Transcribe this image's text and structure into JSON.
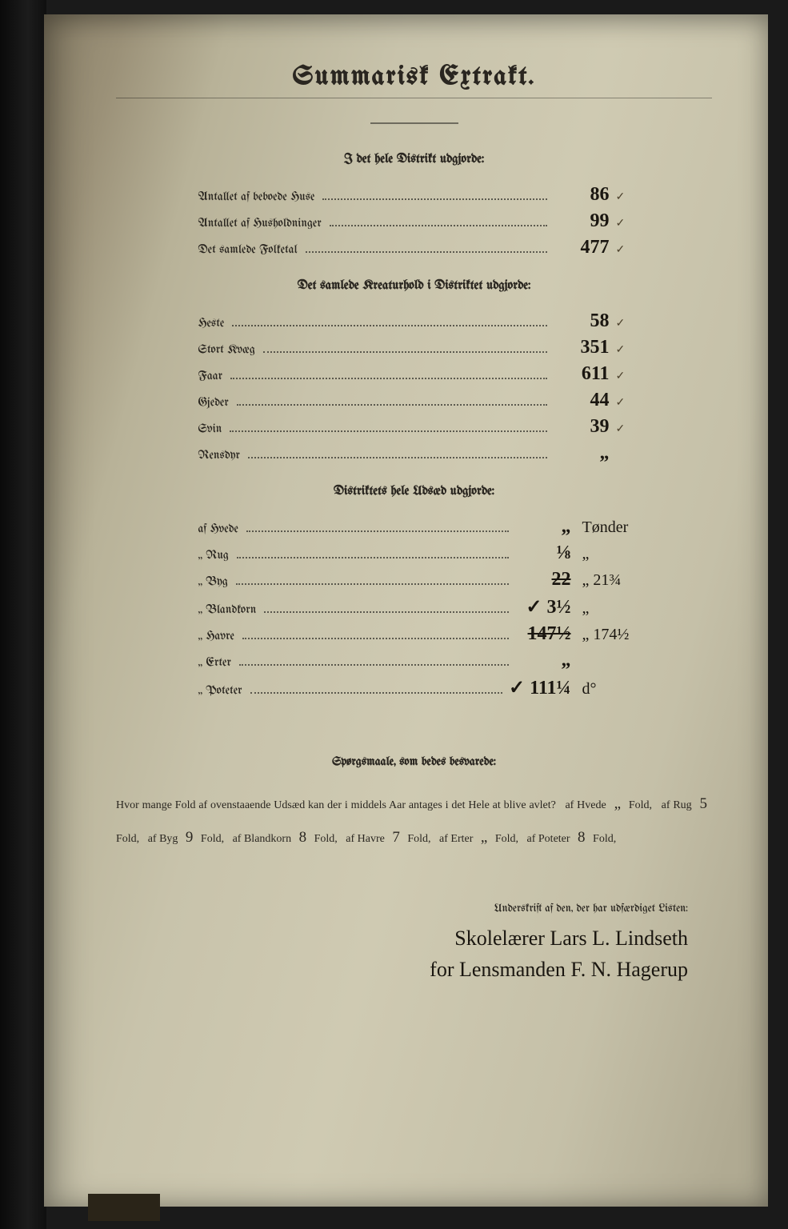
{
  "title": "Summarisk Extrakt.",
  "section1": {
    "heading": "I det hele Distrikt udgjorde:",
    "rows": [
      {
        "label": "Antallet af beboede Huse",
        "value": "86",
        "check": "✓"
      },
      {
        "label": "Antallet af Husholdninger",
        "value": "99",
        "check": "✓"
      },
      {
        "label": "Det samlede Folketal",
        "value": "477",
        "check": "✓"
      }
    ]
  },
  "section2": {
    "heading": "Det samlede Kreaturhold i Distriktet udgjorde:",
    "rows": [
      {
        "label": "Heste",
        "value": "58",
        "check": "✓"
      },
      {
        "label": "Stort Kvæg",
        "value": "351",
        "check": "✓"
      },
      {
        "label": "Faar",
        "value": "611",
        "check": "✓"
      },
      {
        "label": "Gjeder",
        "value": "44",
        "check": "✓"
      },
      {
        "label": "Svin",
        "value": "39",
        "check": "✓"
      },
      {
        "label": "Rensdyr",
        "value": "„",
        "check": ""
      }
    ]
  },
  "section3": {
    "heading": "Distriktets hele Udsæd udgjorde:",
    "rows": [
      {
        "label": "af Hvede",
        "value": "„",
        "extra": "Tønder"
      },
      {
        "label": "„  Rug",
        "value": "⅛",
        "extra": "„"
      },
      {
        "label": "„  Byg",
        "value": "22",
        "extra": "„  21¾"
      },
      {
        "label": "„  Blandkorn",
        "value": "✓ 3½",
        "extra": "„"
      },
      {
        "label": "„  Havre",
        "value": "147½",
        "extra": "„  174½"
      },
      {
        "label": "„  Erter",
        "value": "„",
        "extra": ""
      },
      {
        "label": "„  Poteter",
        "value": "✓ 111¼",
        "extra": "d°"
      }
    ]
  },
  "questions": {
    "heading": "Spørgsmaale, som bedes besvarede:",
    "intro": "Hvor mange Fold af ovenstaaende Udsæd kan der i middels Aar antages i det Hele at blive avlet?",
    "items": [
      {
        "crop": "af Hvede",
        "fold": "„"
      },
      {
        "crop": "af Rug",
        "fold": "5"
      },
      {
        "crop": "af Byg",
        "fold": "9"
      },
      {
        "crop": "af Blandkorn",
        "fold": "8"
      },
      {
        "crop": "af Havre",
        "fold": "7"
      },
      {
        "crop": "af Erter",
        "fold": "„"
      },
      {
        "crop": "af Poteter",
        "fold": "8"
      }
    ],
    "fold_word": "Fold,"
  },
  "signature": {
    "label": "Underskrift af den, der har udfærdiget Listen:",
    "line1": "Skolelærer Lars L. Lindseth",
    "line2": "for Lensmanden  F. N. Hagerup"
  },
  "colors": {
    "ink": "#1a1610",
    "paper_mid": "#c8c3ab"
  }
}
